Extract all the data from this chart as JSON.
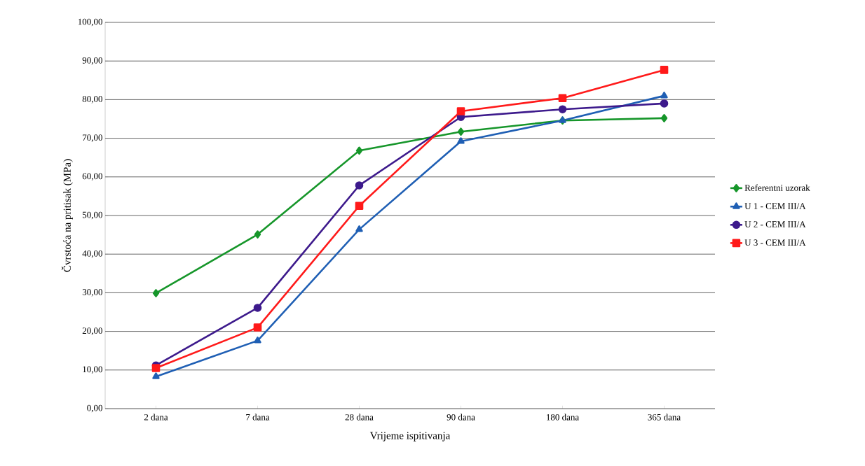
{
  "chart_data": {
    "type": "line",
    "xlabel": "Vrijeme ispitivanja",
    "ylabel": "Čvrstoća na pritisak (MPa)",
    "categories": [
      "2 dana",
      "7 dana",
      "28 dana",
      "90 dana",
      "180 dana",
      "365 dana"
    ],
    "series": [
      {
        "name": "Referentni uzorak",
        "color": "#16962a",
        "marker": "diamond",
        "values": [
          29.9,
          45.1,
          66.8,
          71.7,
          74.6,
          75.2
        ]
      },
      {
        "name": "U 1 - CEM III/A",
        "color": "#1f5fb4",
        "marker": "triangle",
        "values": [
          8.3,
          17.6,
          46.4,
          69.2,
          74.6,
          81.0
        ]
      },
      {
        "name": "U 2 - CEM III/A",
        "color": "#3d1a8c",
        "marker": "circle",
        "values": [
          11.2,
          26.1,
          57.8,
          75.5,
          77.5,
          79.0
        ]
      },
      {
        "name": "U 3 - CEM III/A",
        "color": "#ff1a1a",
        "marker": "square",
        "values": [
          10.5,
          21.0,
          52.5,
          77.0,
          80.4,
          87.7
        ]
      }
    ],
    "ylim": [
      0,
      100
    ],
    "yticks": [
      {
        "value": 0,
        "label": "0,00"
      },
      {
        "value": 10,
        "label": "10,00"
      },
      {
        "value": 20,
        "label": "20,00"
      },
      {
        "value": 30,
        "label": "30,00"
      },
      {
        "value": 40,
        "label": "40,00"
      },
      {
        "value": 50,
        "label": "50,00"
      },
      {
        "value": 60,
        "label": "60,00"
      },
      {
        "value": 70,
        "label": "70,00"
      },
      {
        "value": 80,
        "label": "80,00"
      },
      {
        "value": 90,
        "label": "90,00"
      },
      {
        "value": 100,
        "label": "100,00"
      }
    ],
    "grid": "y",
    "legend": "right",
    "line_style": "solid"
  }
}
